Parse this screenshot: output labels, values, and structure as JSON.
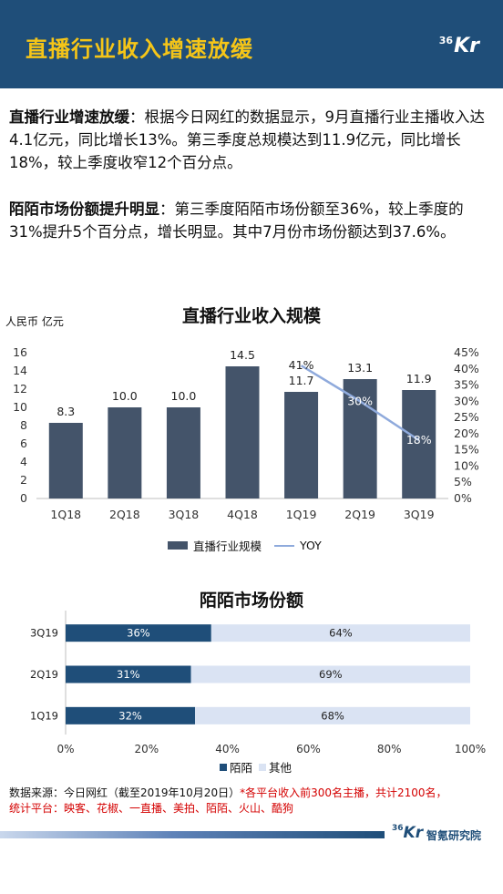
{
  "header": {
    "title": "直播行业收入增速放缓",
    "logo_num": "36",
    "logo_letters": "Kr",
    "bg_color": "#1f4e79",
    "title_color": "#f5c518"
  },
  "paragraph1": {
    "bold": "直播行业增速放缓",
    "text": "：根据今日网红的数据显示，9月直播行业主播收入达4.1亿元，同比增长13%。第三季度总规模达到11.9亿元，同比增长18%，较上季度收窄12个百分点。"
  },
  "paragraph2": {
    "bold": "陌陌市场份额提升明显",
    "text": "：第三季度陌陌市场份额至36%，较上季度的31%提升5个百分点，增长明显。其中7月份市场份额达到37.6%。"
  },
  "chart_data": [
    {
      "type": "bar",
      "title": "直播行业收入规模",
      "ylabel": "人民币 亿元",
      "categories": [
        "1Q18",
        "2Q18",
        "3Q18",
        "4Q18",
        "1Q19",
        "2Q19",
        "3Q19"
      ],
      "series": [
        {
          "name": "直播行业规模",
          "type": "bar",
          "color": "#44546a",
          "values": [
            8.3,
            10.0,
            10.0,
            14.5,
            11.7,
            13.1,
            11.9
          ],
          "labels": [
            "8.3",
            "10.0",
            "10.0",
            "14.5",
            "11.7",
            "13.1",
            "11.9"
          ]
        },
        {
          "name": "YOY",
          "type": "line",
          "axis": "right",
          "color": "#8faadc",
          "values": [
            null,
            null,
            null,
            null,
            41,
            30,
            18
          ],
          "labels": [
            "",
            "",
            "",
            "",
            "41%",
            "30%",
            "18%"
          ]
        }
      ],
      "ylim": [
        0,
        16
      ],
      "yticks": [
        "0",
        "2",
        "4",
        "6",
        "8",
        "10",
        "12",
        "14",
        "16"
      ],
      "y2lim": [
        0,
        45
      ],
      "y2ticks": [
        "0%",
        "5%",
        "10%",
        "15%",
        "20%",
        "25%",
        "30%",
        "35%",
        "40%",
        "45%"
      ],
      "legend": "bottom"
    },
    {
      "type": "bar",
      "orientation": "horizontal",
      "stacked": true,
      "title": "陌陌市场份额",
      "categories": [
        "3Q19",
        "2Q19",
        "1Q19"
      ],
      "series": [
        {
          "name": "陌陌",
          "color": "#1f4e79",
          "values": [
            36,
            31,
            32
          ],
          "labels": [
            "36%",
            "31%",
            "32%"
          ]
        },
        {
          "name": "其他",
          "color": "#dae3f3",
          "values": [
            64,
            69,
            68
          ],
          "labels": [
            "64%",
            "69%",
            "68%"
          ]
        }
      ],
      "xlim": [
        0,
        100
      ],
      "xticks": [
        "0%",
        "20%",
        "40%",
        "60%",
        "80%",
        "100%"
      ],
      "legend": "bottom"
    }
  ],
  "source": {
    "text": "数据来源：今日网红（截至2019年10月20日）",
    "note": "*各平台收入前300名主播，共计2100名，",
    "line2": "统计平台：映客、花椒、一直播、美拍、陌陌、火山、酷狗"
  },
  "footer": {
    "logo_num": "36",
    "logo_letters": "Kr",
    "text": "智氪研究院"
  }
}
